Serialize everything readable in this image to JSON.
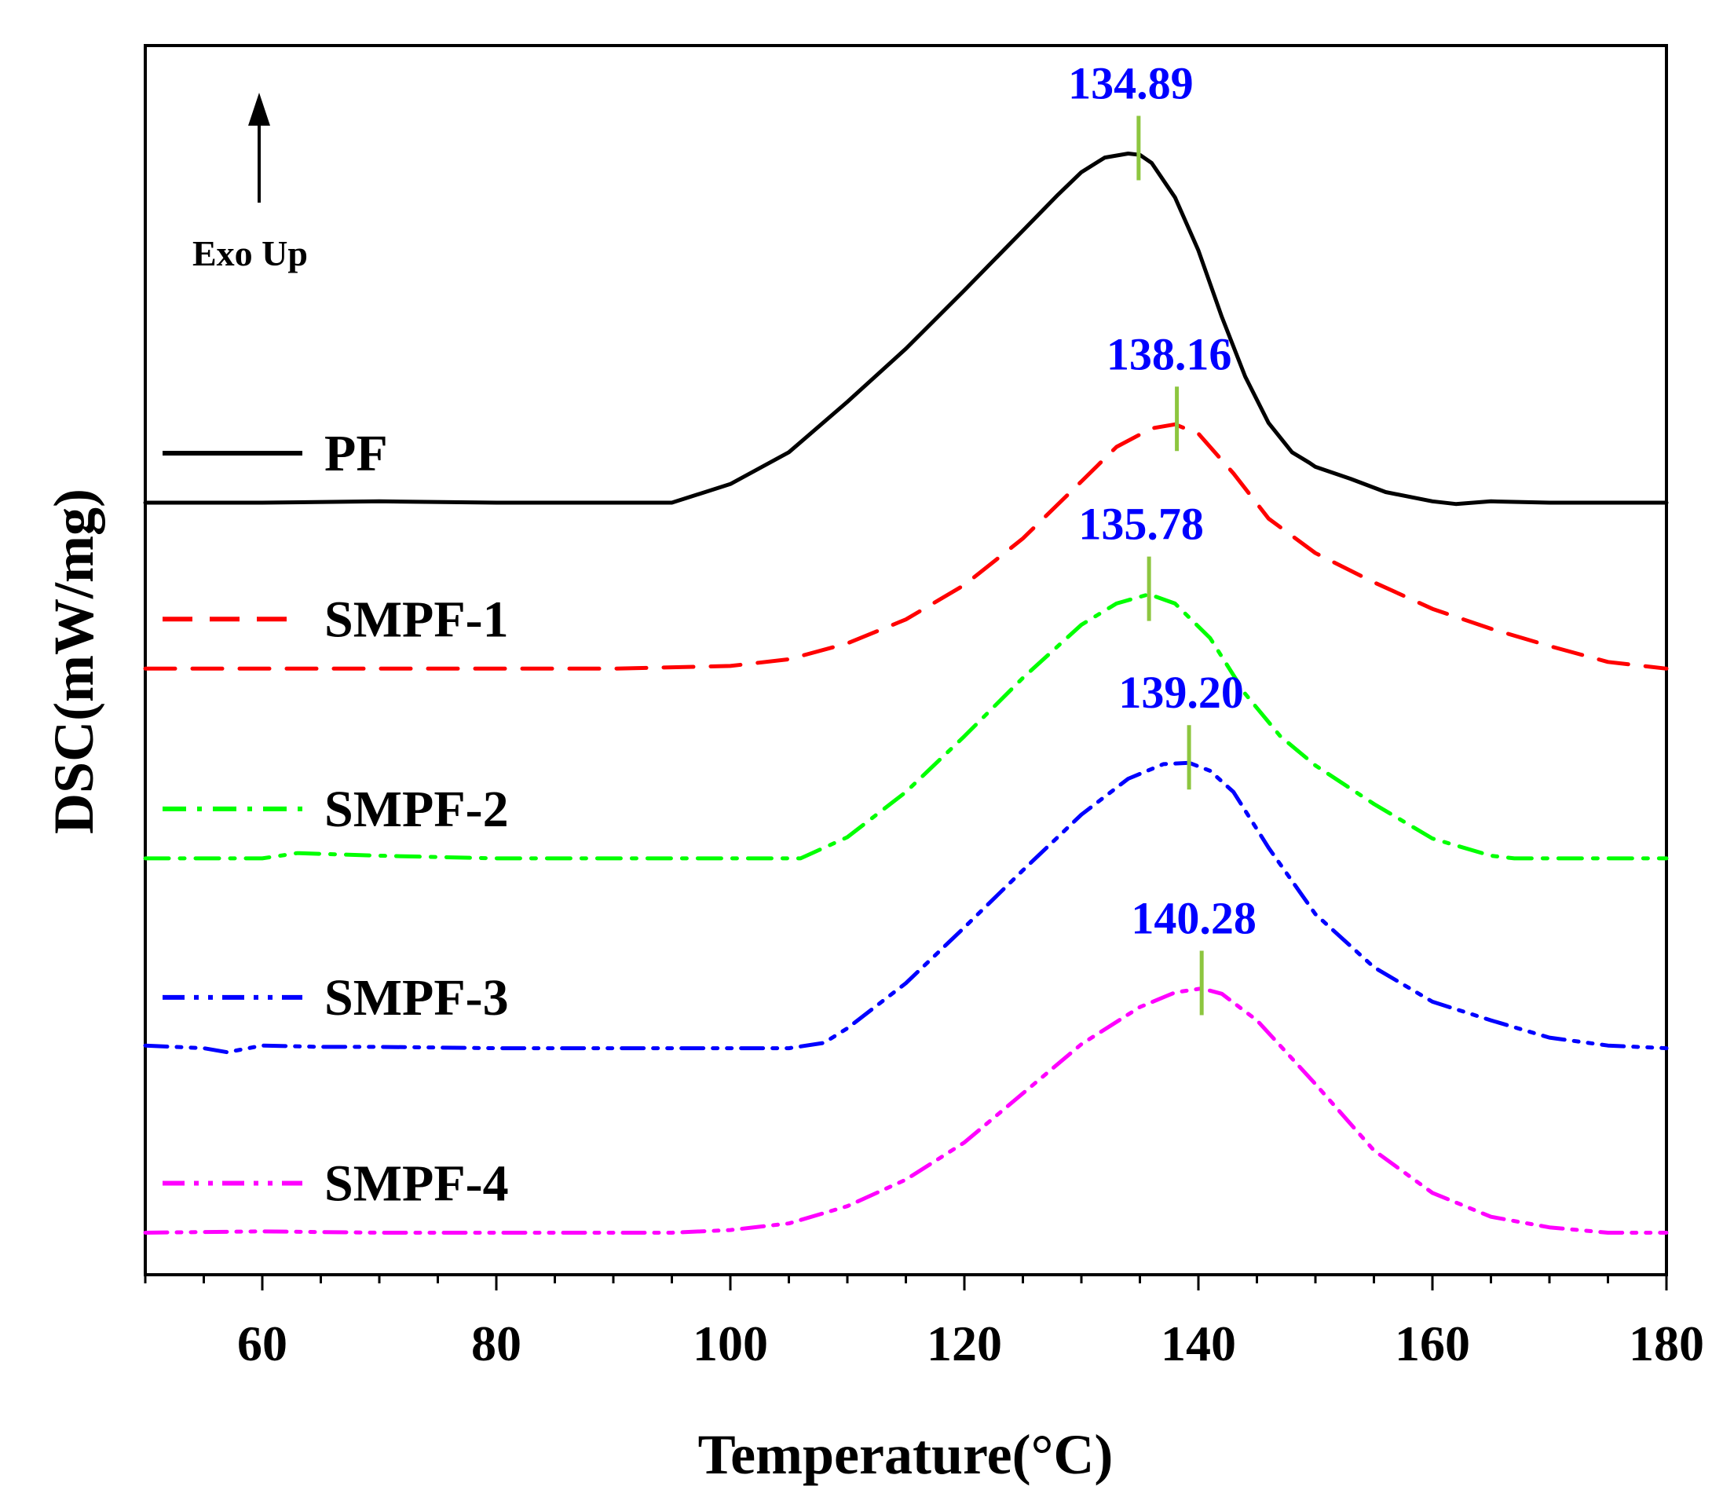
{
  "chart_data": {
    "type": "line",
    "title": "",
    "xlabel": "Temperature(°C)",
    "ylabel": "DSC(mW/mg)",
    "xlim": [
      50,
      180
    ],
    "xticks": [
      60,
      80,
      100,
      120,
      140,
      160,
      180
    ],
    "y_units_note": "relative offset units",
    "annotation": "Exo Up",
    "peak_marker_color": "#8dc63f",
    "peak_label_color": "#0000ff",
    "series": [
      {
        "name": "PF",
        "color": "#000000",
        "dash": "solid",
        "baseline": 0,
        "peak_label": "134.89",
        "peak_x": 134.89,
        "x": [
          50,
          60,
          70,
          80,
          90,
          95,
          100,
          105,
          110,
          115,
          120,
          125,
          128,
          130,
          132,
          134,
          135,
          136,
          138,
          140,
          142,
          144,
          146,
          148,
          149.5,
          150,
          153,
          156,
          160,
          162,
          165,
          170,
          175,
          180
        ],
        "y": [
          0,
          0,
          0.01,
          0,
          0,
          0,
          0.14,
          0.38,
          0.76,
          1.16,
          1.6,
          2.05,
          2.32,
          2.49,
          2.6,
          2.63,
          2.62,
          2.56,
          2.3,
          1.9,
          1.4,
          0.95,
          0.6,
          0.38,
          0.3,
          0.27,
          0.18,
          0.08,
          0.01,
          -0.01,
          0.01,
          0,
          0,
          0
        ]
      },
      {
        "name": "SMPF-1",
        "color": "#ff0000",
        "dash": "dashed",
        "baseline": -1.25,
        "peak_label": "138.16",
        "peak_x": 138.16,
        "x": [
          50,
          60,
          70,
          80,
          90,
          100,
          105,
          110,
          115,
          120,
          125,
          130,
          133,
          136,
          138,
          140,
          143,
          146,
          150,
          155,
          160,
          165,
          170,
          175,
          180
        ],
        "y": [
          -1.25,
          -1.25,
          -1.25,
          -1.25,
          -1.25,
          -1.23,
          -1.18,
          -1.06,
          -0.88,
          -0.62,
          -0.27,
          0.16,
          0.42,
          0.56,
          0.59,
          0.52,
          0.22,
          -0.12,
          -0.38,
          -0.6,
          -0.8,
          -0.95,
          -1.08,
          -1.2,
          -1.25
        ]
      },
      {
        "name": "SMPF-2",
        "color": "#00ff00",
        "dash": "dashdot",
        "baseline": -2.68,
        "peak_label": "135.78",
        "peak_x": 135.78,
        "x": [
          50,
          60,
          63,
          70,
          80,
          90,
          100,
          106,
          110,
          115,
          120,
          125,
          130,
          133,
          135.78,
          138,
          141,
          144,
          147,
          150,
          155,
          160,
          165,
          167,
          170,
          175,
          180
        ],
        "y": [
          -2.68,
          -2.68,
          -2.64,
          -2.66,
          -2.68,
          -2.68,
          -2.68,
          -2.68,
          -2.52,
          -2.18,
          -1.76,
          -1.32,
          -0.92,
          -0.76,
          -0.69,
          -0.76,
          -1.02,
          -1.44,
          -1.76,
          -1.98,
          -2.27,
          -2.53,
          -2.66,
          -2.68,
          -2.68,
          -2.68,
          -2.68
        ]
      },
      {
        "name": "SMPF-3",
        "color": "#0000ff",
        "dash": "dashdotdot",
        "baseline": -4.1,
        "peak_label": "139.20",
        "peak_x": 139.2,
        "x": [
          50,
          55,
          57,
          60,
          65,
          70,
          80,
          90,
          100,
          105,
          108,
          110,
          115,
          120,
          125,
          130,
          134,
          137,
          139.2,
          141,
          143,
          146,
          150,
          155,
          160,
          165,
          170,
          175,
          180
        ],
        "y": [
          -4.09,
          -4.11,
          -4.14,
          -4.09,
          -4.1,
          -4.1,
          -4.11,
          -4.11,
          -4.11,
          -4.11,
          -4.07,
          -3.96,
          -3.62,
          -3.2,
          -2.77,
          -2.35,
          -2.08,
          -1.97,
          -1.96,
          -2.02,
          -2.18,
          -2.6,
          -3.1,
          -3.5,
          -3.76,
          -3.9,
          -4.03,
          -4.09,
          -4.11
        ]
      },
      {
        "name": "SMPF-4",
        "color": "#ff00ff",
        "dash": "dashdotdot",
        "baseline": -5.5,
        "peak_label": "140.28",
        "peak_x": 140.28,
        "x": [
          50,
          60,
          70,
          80,
          90,
          95,
          100,
          105,
          110,
          115,
          120,
          125,
          130,
          135,
          138,
          140.28,
          142,
          145,
          150,
          155,
          160,
          165,
          170,
          175,
          180
        ],
        "y": [
          -5.5,
          -5.49,
          -5.5,
          -5.5,
          -5.5,
          -5.5,
          -5.48,
          -5.43,
          -5.3,
          -5.1,
          -4.82,
          -4.45,
          -4.08,
          -3.8,
          -3.69,
          -3.66,
          -3.7,
          -3.9,
          -4.38,
          -4.88,
          -5.2,
          -5.38,
          -5.46,
          -5.5,
          -5.5
        ]
      }
    ]
  }
}
